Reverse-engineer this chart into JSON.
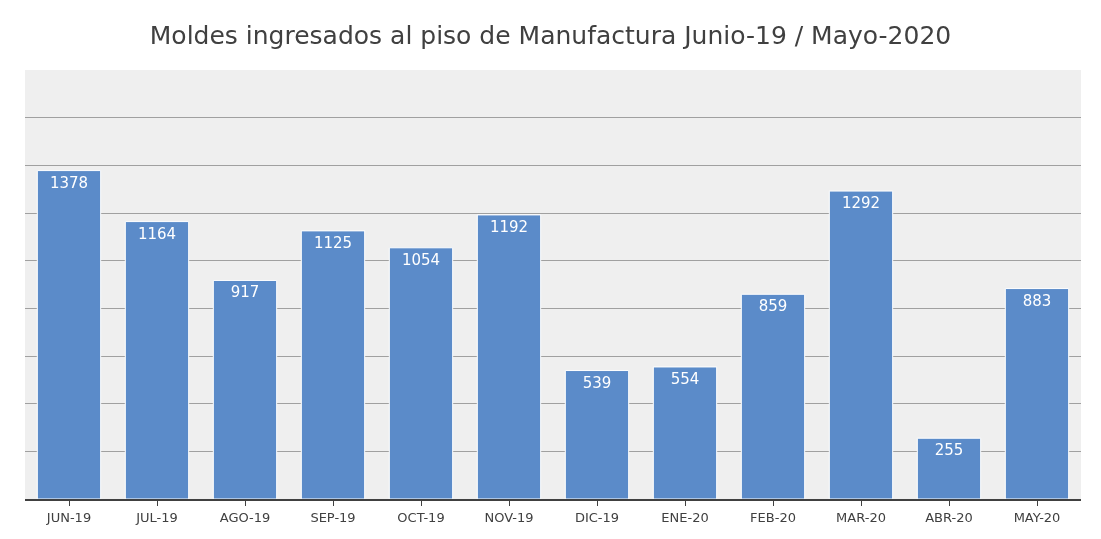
{
  "chart_data": {
    "type": "bar",
    "title": "Moldes ingresados al piso de Manufactura Junio-19 / Mayo-2020",
    "categories": [
      "JUN-19",
      "JUL-19",
      "AGO-19",
      "SEP-19",
      "OCT-19",
      "NOV-19",
      "DIC-19",
      "ENE-20",
      "FEB-20",
      "MAR-20",
      "ABR-20",
      "MAY-20"
    ],
    "values": [
      1378,
      1164,
      917,
      1125,
      1054,
      1192,
      539,
      554,
      859,
      1292,
      255,
      883
    ],
    "color": "#5b8bc9",
    "ylim": [
      0,
      1800
    ],
    "yticks": [
      {
        "value": 0,
        "label": null
      },
      {
        "value": 200,
        "label": null
      },
      {
        "value": 400,
        "label": null
      },
      {
        "value": 600,
        "label": null
      },
      {
        "value": 800,
        "label": null
      },
      {
        "value": 1000,
        "label": null
      },
      {
        "value": 1200,
        "label": null
      },
      {
        "value": 1400,
        "label": null
      },
      {
        "value": 1600,
        "label": null
      }
    ],
    "grid": "y",
    "data_labels": true,
    "tick_labels": "x",
    "legend": false
  }
}
